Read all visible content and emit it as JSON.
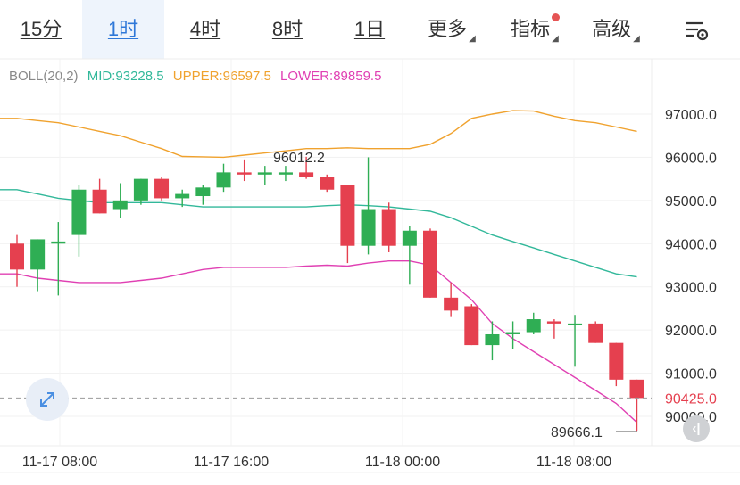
{
  "tabs": [
    {
      "label": "15分",
      "active": false
    },
    {
      "label": "1时",
      "active": true
    },
    {
      "label": "4时",
      "active": false
    },
    {
      "label": "8时",
      "active": false
    },
    {
      "label": "1日",
      "active": false
    }
  ],
  "menus": {
    "more_label": "更多",
    "indicator_label": "指标",
    "advanced_label": "高级"
  },
  "indicator": {
    "name": "BOLL(20,2)",
    "mid": "MID:93228.5",
    "upper": "UPPER:96597.5",
    "lower": "LOWER:89859.5",
    "colors": {
      "mid": "#32b89a",
      "upper": "#f0a22e",
      "lower": "#e040b3",
      "name": "#888888"
    }
  },
  "colors": {
    "up": "#2fae54",
    "down": "#e5404f",
    "active_tab_bg": "#eef4fc",
    "active_tab_text": "#2f78d8",
    "current_price": "#e5404f"
  },
  "chart_data": {
    "type": "candlestick",
    "y_ticks": [
      "97000.0",
      "96000.0",
      "95000.0",
      "94000.0",
      "93000.0",
      "92000.0",
      "91000.0",
      "90000.0"
    ],
    "x_ticks": [
      "11-17 08:00",
      "11-17 16:00",
      "11-18 00:00",
      "11-18 08:00"
    ],
    "current_price": "90425.0",
    "high_label": "96012.2",
    "low_label": "89666.1",
    "candles": [
      {
        "o": 94000,
        "h": 94200,
        "l": 93000,
        "c": 93400
      },
      {
        "o": 93400,
        "h": 94100,
        "l": 92900,
        "c": 94100
      },
      {
        "o": 94000,
        "h": 94500,
        "l": 92800,
        "c": 94050
      },
      {
        "o": 94200,
        "h": 95350,
        "l": 93700,
        "c": 95250
      },
      {
        "o": 95250,
        "h": 95500,
        "l": 94700,
        "c": 94700
      },
      {
        "o": 94800,
        "h": 95400,
        "l": 94600,
        "c": 95000
      },
      {
        "o": 95000,
        "h": 95500,
        "l": 94900,
        "c": 95500
      },
      {
        "o": 95500,
        "h": 95550,
        "l": 95000,
        "c": 95050
      },
      {
        "o": 95050,
        "h": 95250,
        "l": 94850,
        "c": 95150
      },
      {
        "o": 95100,
        "h": 95350,
        "l": 94900,
        "c": 95300
      },
      {
        "o": 95300,
        "h": 95850,
        "l": 95200,
        "c": 95650
      },
      {
        "o": 95650,
        "h": 95950,
        "l": 95450,
        "c": 95600
      },
      {
        "o": 95600,
        "h": 95800,
        "l": 95350,
        "c": 95650
      },
      {
        "o": 95600,
        "h": 95800,
        "l": 95450,
        "c": 95650
      },
      {
        "o": 95650,
        "h": 96012.2,
        "l": 95500,
        "c": 95550
      },
      {
        "o": 95550,
        "h": 95600,
        "l": 95200,
        "c": 95250
      },
      {
        "o": 95350,
        "h": 95350,
        "l": 93550,
        "c": 93950
      },
      {
        "o": 93950,
        "h": 96000,
        "l": 93750,
        "c": 94800
      },
      {
        "o": 94800,
        "h": 94950,
        "l": 93800,
        "c": 93950
      },
      {
        "o": 93950,
        "h": 94400,
        "l": 93050,
        "c": 94300
      },
      {
        "o": 94300,
        "h": 94350,
        "l": 92750,
        "c": 92750
      },
      {
        "o": 92750,
        "h": 93100,
        "l": 92300,
        "c": 92450
      },
      {
        "o": 92550,
        "h": 92600,
        "l": 91650,
        "c": 91650
      },
      {
        "o": 91650,
        "h": 92200,
        "l": 91300,
        "c": 91900
      },
      {
        "o": 91900,
        "h": 92200,
        "l": 91550,
        "c": 91950
      },
      {
        "o": 91950,
        "h": 92400,
        "l": 91900,
        "c": 92250
      },
      {
        "o": 92200,
        "h": 92250,
        "l": 91800,
        "c": 92150
      },
      {
        "o": 92150,
        "h": 92350,
        "l": 91150,
        "c": 92150
      },
      {
        "o": 92150,
        "h": 92200,
        "l": 91700,
        "c": 91700
      },
      {
        "o": 91700,
        "h": 91700,
        "l": 90700,
        "c": 90850
      },
      {
        "o": 90850,
        "h": 90850,
        "l": 89666.1,
        "c": 90425
      }
    ],
    "boll_upper": [
      96900,
      96850,
      96800,
      96700,
      96600,
      96500,
      96350,
      96200,
      96020,
      96010,
      96000,
      96050,
      96100,
      96150,
      96200,
      96200,
      96220,
      96200,
      96200,
      96200,
      96300,
      96550,
      96900,
      97000,
      97080,
      97070,
      96950,
      96850,
      96800,
      96700,
      96600
    ],
    "boll_mid": [
      95250,
      95150,
      95050,
      95000,
      94950,
      94950,
      94950,
      94950,
      94900,
      94850,
      94850,
      94850,
      94850,
      94850,
      94850,
      94880,
      94900,
      94880,
      94850,
      94800,
      94750,
      94600,
      94400,
      94200,
      94050,
      93900,
      93750,
      93600,
      93450,
      93300,
      93230
    ],
    "boll_lower": [
      93300,
      93200,
      93150,
      93100,
      93100,
      93100,
      93150,
      93200,
      93300,
      93400,
      93450,
      93450,
      93450,
      93450,
      93480,
      93500,
      93480,
      93550,
      93600,
      93600,
      93500,
      93100,
      92700,
      92150,
      91800,
      91500,
      91200,
      90900,
      90600,
      90300,
      89860
    ],
    "xlabel": "",
    "ylabel": ""
  }
}
